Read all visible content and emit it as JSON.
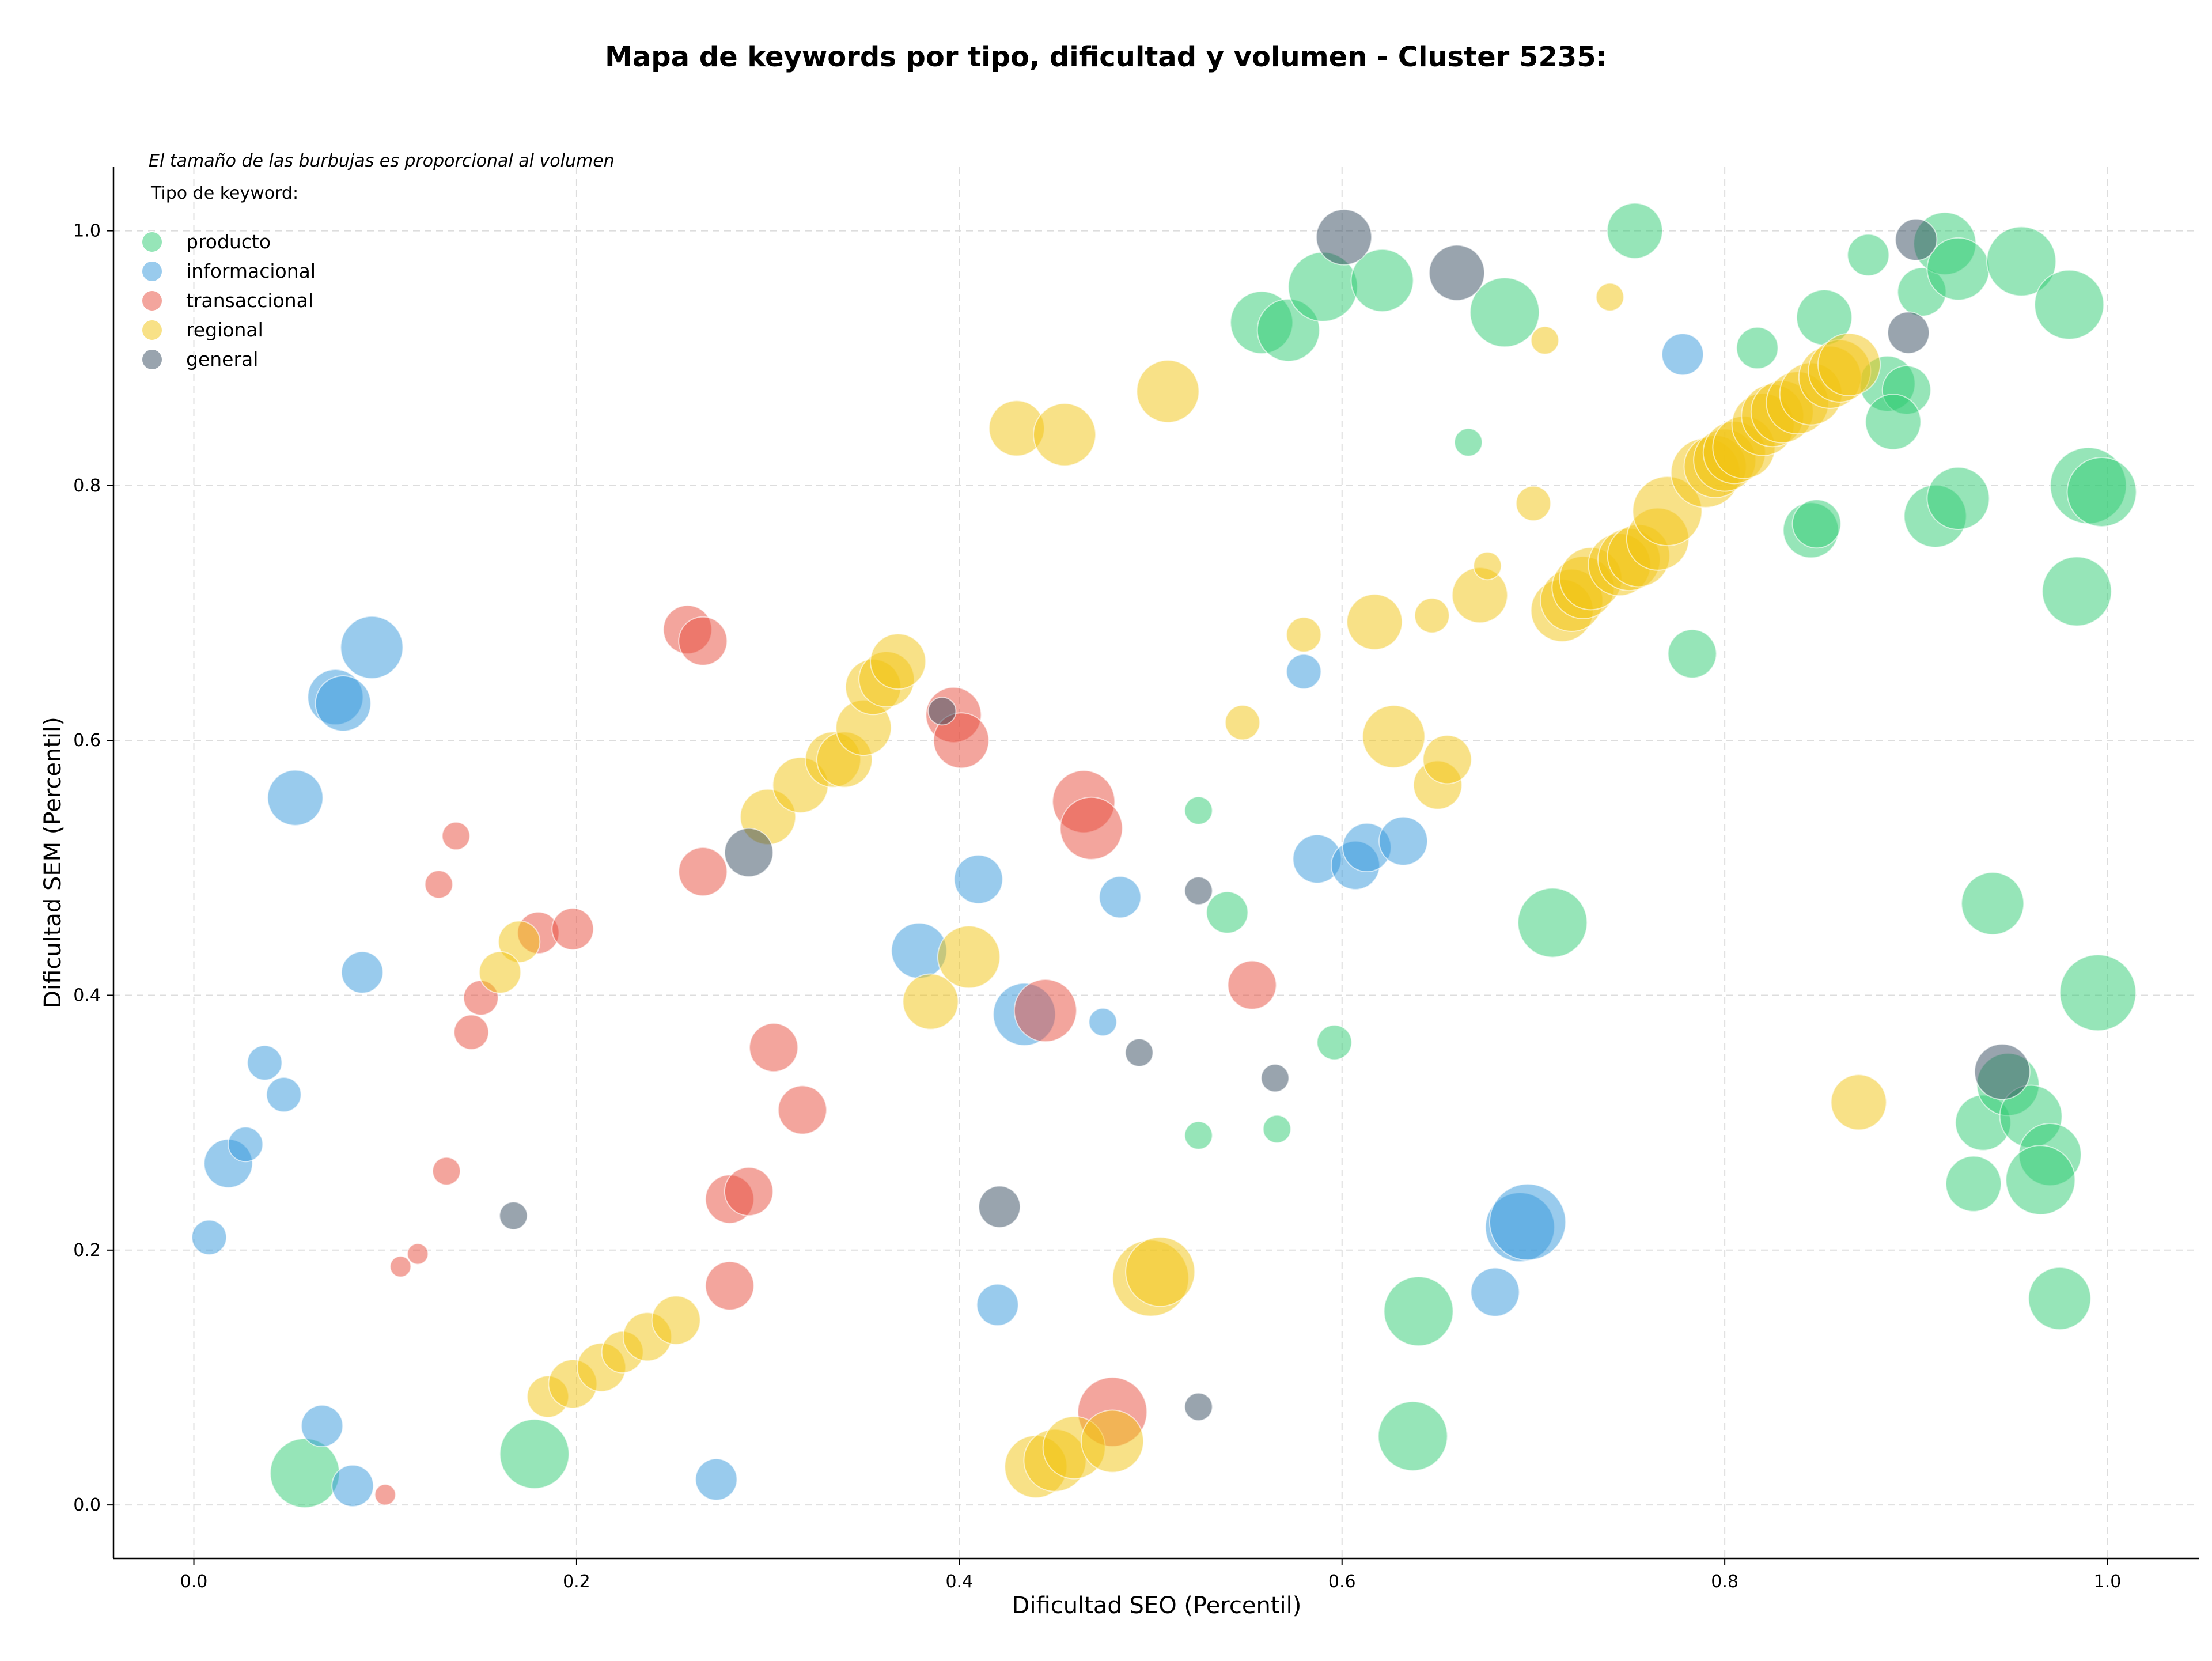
{
  "chart_data": {
    "type": "scatter",
    "title": "Mapa de keywords por tipo, dificultad y volumen - Cluster 5235:",
    "xlabel": "Dificultad SEO (Percentil)",
    "ylabel": "Dificultad SEM (Percentil)",
    "annotation": "El tamaño de las burbujas es proporcional al volumen",
    "legend_title": "Tipo de keyword:",
    "legend_position": "top-left",
    "grid": true,
    "xlim": [
      -0.042,
      1.048
    ],
    "ylim": [
      -0.042,
      1.05
    ],
    "xticks": [
      "0.0",
      "0.2",
      "0.4",
      "0.6",
      "0.8",
      "1.0"
    ],
    "yticks": [
      "0.0",
      "0.2",
      "0.4",
      "0.6",
      "0.8",
      "1.0"
    ],
    "series": [
      {
        "name": "producto",
        "color": "#2ecc71",
        "points": [
          [
            0.058,
            0.025,
            10
          ],
          [
            0.178,
            0.04,
            10
          ],
          [
            0.637,
            0.054,
            10
          ],
          [
            0.64,
            0.152,
            10
          ],
          [
            0.525,
            0.29,
            4
          ],
          [
            0.566,
            0.295,
            4
          ],
          [
            0.596,
            0.363,
            5
          ],
          [
            0.71,
            0.457,
            10
          ],
          [
            0.54,
            0.465,
            6
          ],
          [
            0.525,
            0.545,
            4
          ],
          [
            0.666,
            0.834,
            4
          ],
          [
            0.783,
            0.668,
            7
          ],
          [
            0.753,
            1.0,
            8
          ],
          [
            0.558,
            0.928,
            9
          ],
          [
            0.572,
            0.922,
            9
          ],
          [
            0.59,
            0.956,
            10
          ],
          [
            0.621,
            0.961,
            9
          ],
          [
            0.685,
            0.936,
            10
          ],
          [
            0.817,
            0.908,
            6
          ],
          [
            0.852,
            0.932,
            8
          ],
          [
            0.875,
            0.981,
            6
          ],
          [
            0.845,
            0.765,
            8
          ],
          [
            0.848,
            0.77,
            7
          ],
          [
            0.885,
            0.88,
            8
          ],
          [
            0.895,
            0.875,
            7
          ],
          [
            0.888,
            0.85,
            8
          ],
          [
            0.903,
            0.952,
            7
          ],
          [
            0.915,
            0.99,
            9
          ],
          [
            0.922,
            0.97,
            9
          ],
          [
            0.955,
            0.976,
            10
          ],
          [
            0.98,
            0.942,
            10
          ],
          [
            0.91,
            0.776,
            9
          ],
          [
            0.922,
            0.79,
            9
          ],
          [
            0.99,
            0.8,
            11
          ],
          [
            0.997,
            0.795,
            10
          ],
          [
            0.984,
            0.717,
            10
          ],
          [
            0.94,
            0.472,
            9
          ],
          [
            0.995,
            0.402,
            11
          ],
          [
            0.935,
            0.3,
            8
          ],
          [
            0.948,
            0.33,
            9
          ],
          [
            0.96,
            0.305,
            9
          ],
          [
            0.97,
            0.275,
            9
          ],
          [
            0.965,
            0.255,
            10
          ],
          [
            0.93,
            0.252,
            8
          ],
          [
            0.975,
            0.162,
            9
          ]
        ]
      },
      {
        "name": "informacional",
        "color": "#3498db",
        "points": [
          [
            0.008,
            0.21,
            5
          ],
          [
            0.018,
            0.268,
            7
          ],
          [
            0.027,
            0.283,
            5
          ],
          [
            0.037,
            0.347,
            5
          ],
          [
            0.047,
            0.322,
            5
          ],
          [
            0.088,
            0.418,
            6
          ],
          [
            0.053,
            0.555,
            8
          ],
          [
            0.074,
            0.634,
            8
          ],
          [
            0.078,
            0.629,
            8
          ],
          [
            0.093,
            0.673,
            9
          ],
          [
            0.067,
            0.062,
            6
          ],
          [
            0.083,
            0.015,
            6
          ],
          [
            0.273,
            0.02,
            6
          ],
          [
            0.42,
            0.157,
            6
          ],
          [
            0.41,
            0.491,
            7
          ],
          [
            0.379,
            0.435,
            8
          ],
          [
            0.434,
            0.385,
            9
          ],
          [
            0.475,
            0.379,
            4
          ],
          [
            0.484,
            0.477,
            6
          ],
          [
            0.58,
            0.654,
            5
          ],
          [
            0.587,
            0.507,
            7
          ],
          [
            0.607,
            0.502,
            7
          ],
          [
            0.613,
            0.516,
            7
          ],
          [
            0.632,
            0.521,
            7
          ],
          [
            0.68,
            0.167,
            7
          ],
          [
            0.693,
            0.218,
            10
          ],
          [
            0.697,
            0.222,
            11
          ],
          [
            0.778,
            0.903,
            6
          ]
        ]
      },
      {
        "name": "transaccional",
        "color": "#e74c3c",
        "points": [
          [
            0.1,
            0.008,
            3
          ],
          [
            0.108,
            0.187,
            3
          ],
          [
            0.117,
            0.197,
            3
          ],
          [
            0.132,
            0.262,
            4
          ],
          [
            0.145,
            0.371,
            5
          ],
          [
            0.15,
            0.398,
            5
          ],
          [
            0.128,
            0.487,
            4
          ],
          [
            0.137,
            0.525,
            4
          ],
          [
            0.18,
            0.449,
            6
          ],
          [
            0.198,
            0.452,
            6
          ],
          [
            0.258,
            0.687,
            7
          ],
          [
            0.266,
            0.678,
            7
          ],
          [
            0.266,
            0.497,
            7
          ],
          [
            0.28,
            0.24,
            7
          ],
          [
            0.29,
            0.246,
            7
          ],
          [
            0.28,
            0.172,
            7
          ],
          [
            0.303,
            0.359,
            7
          ],
          [
            0.318,
            0.31,
            7
          ],
          [
            0.397,
            0.62,
            8
          ],
          [
            0.401,
            0.6,
            8
          ],
          [
            0.445,
            0.388,
            9
          ],
          [
            0.465,
            0.552,
            9
          ],
          [
            0.469,
            0.531,
            9
          ],
          [
            0.48,
            0.073,
            10
          ],
          [
            0.553,
            0.408,
            7
          ]
        ]
      },
      {
        "name": "regional",
        "color": "#f1c40f",
        "points": [
          [
            0.185,
            0.085,
            6
          ],
          [
            0.198,
            0.095,
            7
          ],
          [
            0.213,
            0.108,
            7
          ],
          [
            0.224,
            0.12,
            6
          ],
          [
            0.237,
            0.132,
            7
          ],
          [
            0.252,
            0.145,
            7
          ],
          [
            0.17,
            0.442,
            6
          ],
          [
            0.16,
            0.418,
            6
          ],
          [
            0.3,
            0.54,
            8
          ],
          [
            0.317,
            0.565,
            8
          ],
          [
            0.334,
            0.585,
            8
          ],
          [
            0.34,
            0.585,
            8
          ],
          [
            0.35,
            0.61,
            8
          ],
          [
            0.355,
            0.642,
            8
          ],
          [
            0.362,
            0.648,
            8
          ],
          [
            0.368,
            0.662,
            8
          ],
          [
            0.385,
            0.395,
            8
          ],
          [
            0.405,
            0.43,
            9
          ],
          [
            0.44,
            0.03,
            9
          ],
          [
            0.45,
            0.035,
            9
          ],
          [
            0.46,
            0.045,
            9
          ],
          [
            0.48,
            0.05,
            9
          ],
          [
            0.5,
            0.178,
            11
          ],
          [
            0.505,
            0.183,
            10
          ],
          [
            0.43,
            0.845,
            8
          ],
          [
            0.455,
            0.84,
            9
          ],
          [
            0.509,
            0.874,
            9
          ],
          [
            0.548,
            0.614,
            5
          ],
          [
            0.58,
            0.683,
            5
          ],
          [
            0.617,
            0.693,
            8
          ],
          [
            0.627,
            0.603,
            9
          ],
          [
            0.647,
            0.698,
            5
          ],
          [
            0.65,
            0.565,
            7
          ],
          [
            0.655,
            0.585,
            7
          ],
          [
            0.672,
            0.714,
            8
          ],
          [
            0.676,
            0.737,
            4
          ],
          [
            0.7,
            0.786,
            5
          ],
          [
            0.706,
            0.914,
            4
          ],
          [
            0.715,
            0.702,
            9
          ],
          [
            0.72,
            0.71,
            9
          ],
          [
            0.726,
            0.72,
            9
          ],
          [
            0.73,
            0.727,
            9
          ],
          [
            0.74,
            0.948,
            4
          ],
          [
            0.745,
            0.738,
            9
          ],
          [
            0.75,
            0.742,
            9
          ],
          [
            0.755,
            0.745,
            9
          ],
          [
            0.765,
            0.758,
            9
          ],
          [
            0.77,
            0.78,
            10
          ],
          [
            0.79,
            0.81,
            10
          ],
          [
            0.795,
            0.815,
            9
          ],
          [
            0.8,
            0.82,
            9
          ],
          [
            0.805,
            0.826,
            9
          ],
          [
            0.81,
            0.83,
            9
          ],
          [
            0.82,
            0.848,
            9
          ],
          [
            0.825,
            0.855,
            9
          ],
          [
            0.83,
            0.858,
            9
          ],
          [
            0.838,
            0.865,
            9
          ],
          [
            0.845,
            0.872,
            9
          ],
          [
            0.855,
            0.885,
            9
          ],
          [
            0.86,
            0.89,
            9
          ],
          [
            0.865,
            0.895,
            9
          ],
          [
            0.87,
            0.316,
            8
          ]
        ]
      },
      {
        "name": "general",
        "color": "#34495e",
        "points": [
          [
            0.167,
            0.227,
            4
          ],
          [
            0.29,
            0.512,
            7
          ],
          [
            0.391,
            0.623,
            4
          ],
          [
            0.421,
            0.234,
            6
          ],
          [
            0.494,
            0.355,
            4
          ],
          [
            0.525,
            0.482,
            4
          ],
          [
            0.525,
            0.077,
            4
          ],
          [
            0.565,
            0.335,
            4
          ],
          [
            0.601,
            0.995,
            8
          ],
          [
            0.66,
            0.967,
            8
          ],
          [
            0.896,
            0.92,
            6
          ],
          [
            0.9,
            0.993,
            6
          ],
          [
            0.945,
            0.34,
            8
          ]
        ]
      }
    ]
  }
}
